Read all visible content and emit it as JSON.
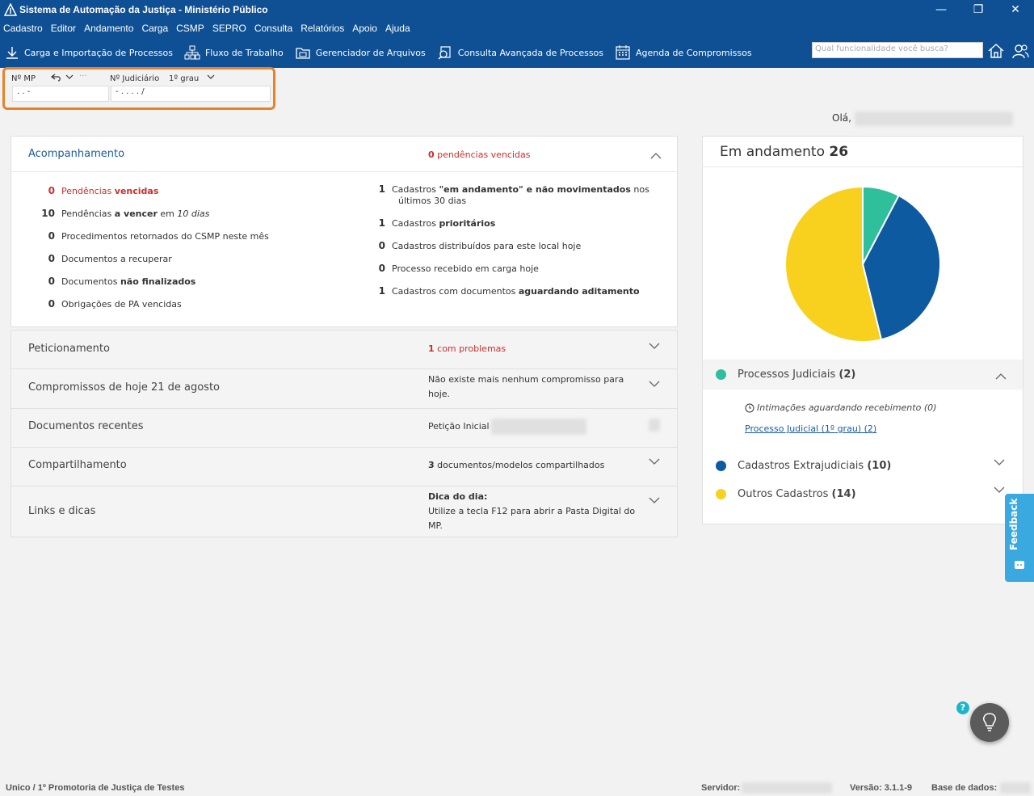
{
  "window": {
    "title": "Sistema de Automação da Justiça - Ministério Público"
  },
  "menu": [
    "Cadastro",
    "Editor",
    "Andamento",
    "Carga",
    "CSMP",
    "SEPRO",
    "Consulta",
    "Relatórios",
    "Apoio",
    "Ajuda"
  ],
  "toolbar": {
    "items": [
      "Carga e Importação de Processos",
      "Fluxo de Trabalho",
      "Gerenciador de Arquivos",
      "Consulta Avançada de Processos",
      "Agenda de Compromissos"
    ],
    "icons": [
      "download-icon",
      "workflow-icon",
      "folder-icon",
      "search-document-icon",
      "calendar-icon"
    ],
    "search_placeholder": "Qual funcionalidade você busca?"
  },
  "quick_search": {
    "mp_label": "Nº MP",
    "mp_value": ".   .      -",
    "judicial_label": "Nº Judiciário",
    "grau_label": "1º grau",
    "judicial_value": "-  .    . .  .       /",
    "more": "···"
  },
  "greeting": "Olá,",
  "acompanhamento": {
    "title": "Acompanhamento",
    "status_count": "0",
    "status_text": "pendências vencidas",
    "left": [
      {
        "n": "0",
        "a": "Pendências ",
        "b": "vencidas",
        "c": ""
      },
      {
        "n": "10",
        "a": "Pendências ",
        "b": "a vencer",
        "c": " em ",
        "d": "10 dias"
      },
      {
        "n": "0",
        "a": "Procedimentos retornados do CSMP neste mês",
        "b": "",
        "c": ""
      },
      {
        "n": "0",
        "a": "Documentos a recuperar",
        "b": "",
        "c": ""
      },
      {
        "n": "0",
        "a": "Documentos ",
        "b": "não finalizados",
        "c": ""
      },
      {
        "n": "0",
        "a": "Obrigações de PA vencidas",
        "b": "",
        "c": ""
      }
    ],
    "right": [
      {
        "n": "1",
        "a": "Cadastros ",
        "b": "\"em andamento\" e não movimentados",
        "c": " nos",
        "line2": "últimos 30 dias"
      },
      {
        "n": "1",
        "a": "Cadastros ",
        "b": "prioritários",
        "c": ""
      },
      {
        "n": "0",
        "a": "Cadastros distribuídos para este local hoje",
        "b": "",
        "c": ""
      },
      {
        "n": "0",
        "a": "Processo recebido em carga hoje",
        "b": "",
        "c": ""
      },
      {
        "n": "1",
        "a": "Cadastros com documentos ",
        "b": "aguardando aditamento",
        "c": ""
      }
    ]
  },
  "sections": {
    "peticionamento": {
      "title": "Peticionamento",
      "count": "1",
      "text": "com problemas"
    },
    "compromissos": {
      "title": "Compromissos de hoje 21 de agosto",
      "line1": "Não existe mais nenhum compromisso para",
      "line2": "hoje."
    },
    "documentos": {
      "title": "Documentos recentes",
      "text": "Petição Inicial"
    },
    "compartilhamento": {
      "title": "Compartilhamento",
      "count": "3",
      "text": "documentos/modelos compartilhados"
    },
    "links": {
      "title": "Links e dicas",
      "heading": "Dica do dia:",
      "line1": "Utilize a tecla F12 para abrir a Pasta Digital do",
      "line2": "MP."
    }
  },
  "em_andamento": {
    "title": "Em andamento",
    "total": "26",
    "legend": [
      {
        "label": "Processos Judiciais",
        "count": "(2)",
        "color": "#2fbf9a"
      },
      {
        "label": "Cadastros Extrajudiciais",
        "count": "(10)",
        "color": "#0d5aa0"
      },
      {
        "label": "Outros Cadastros",
        "count": "(14)",
        "color": "#f7d11e"
      }
    ],
    "intimacoes": "Intimações aguardando recebimento (0)",
    "processo_link": "Processo Judicial (1º grau) (2)"
  },
  "chart_data": {
    "type": "pie",
    "categories": [
      "Processos Judiciais",
      "Cadastros Extrajudiciais",
      "Outros Cadastros"
    ],
    "values": [
      2,
      10,
      14
    ],
    "colors": [
      "#2fbf9a",
      "#0d5aa0",
      "#f7d11e"
    ],
    "title": "Em andamento 26"
  },
  "feedback": "Feedback",
  "help_mark": "?",
  "status": {
    "location": "Unico / 1º Promotoria de Justiça de Testes",
    "server_label": "Servidor:",
    "version": "Versão: 3.1.1-9",
    "db_label": "Base de dados:"
  }
}
